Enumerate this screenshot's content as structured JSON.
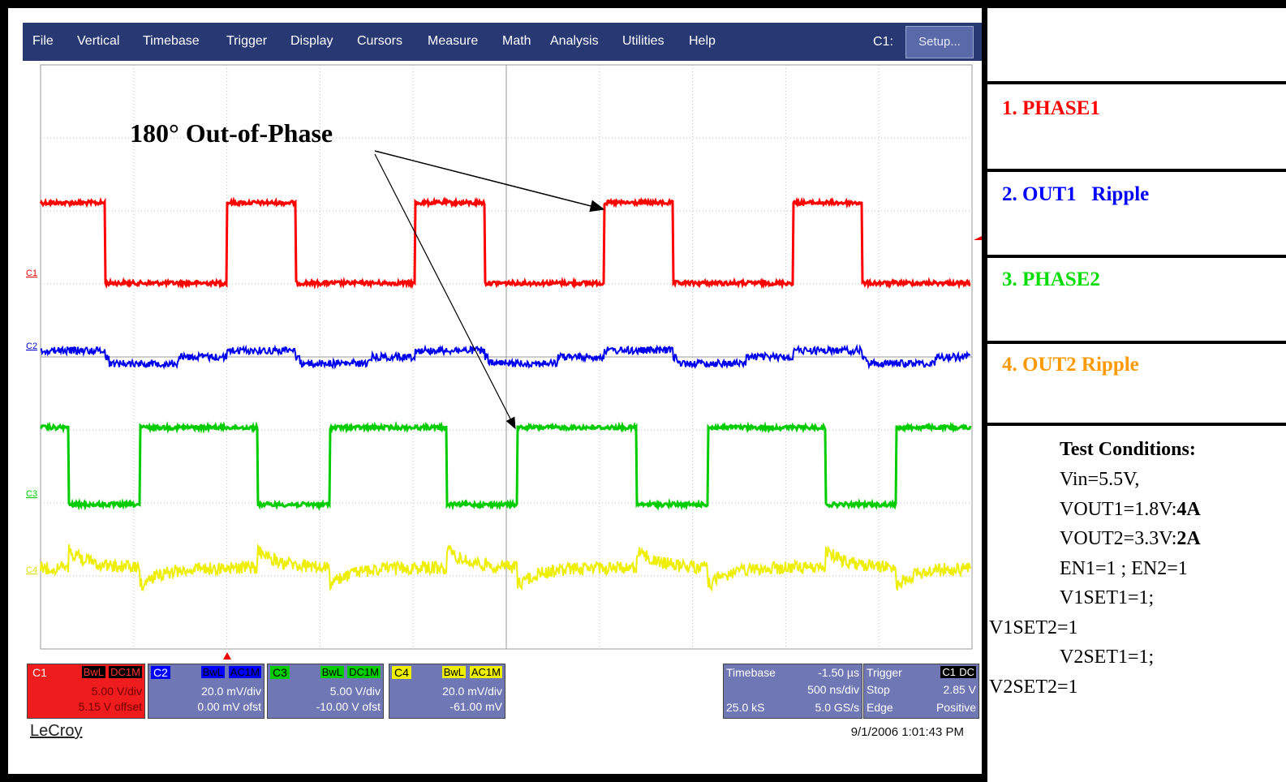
{
  "menu": {
    "items": [
      "File",
      "Vertical",
      "Timebase",
      "Trigger",
      "Display",
      "Cursors",
      "Measure",
      "Math",
      "Analysis",
      "Utilities",
      "Help"
    ],
    "channel_label": "C1:",
    "setup_button": "Setup..."
  },
  "trace_labels": [
    "C1",
    "C2",
    "C3",
    "C4"
  ],
  "annotation": "180° Out-of-Phase",
  "channels": [
    {
      "name": "C1",
      "bandwidth": "BwL",
      "coupling": "DC1M",
      "scale": "5.00 V/div",
      "offset": "5.15 V offset"
    },
    {
      "name": "C2",
      "bandwidth": "BwL",
      "coupling": "AC1M",
      "scale": "20.0 mV/div",
      "offset": "0.00 mV ofst"
    },
    {
      "name": "C3",
      "bandwidth": "BwL",
      "coupling": "DC1M",
      "scale": "5.00 V/div",
      "offset": "-10.00 V ofst"
    },
    {
      "name": "C4",
      "bandwidth": "BwL",
      "coupling": "AC1M",
      "scale": "20.0 mV/div",
      "offset": "-61.00 mV"
    }
  ],
  "timebase": {
    "title": "Timebase",
    "delay": "-1.50 µs",
    "scale": "500 ns/div",
    "samples": "25.0 kS",
    "rate": "5.0 GS/s"
  },
  "trigger": {
    "title": "Trigger",
    "source": "C1",
    "coupling": "DC",
    "mode": "Stop",
    "level": "2.85 V",
    "type": "Edge",
    "slope": "Positive"
  },
  "brand": "LeCroy",
  "timestamp": "9/1/2006 1:01:43 PM",
  "legend": [
    "1. PHASE1",
    "2. OUT1   Ripple",
    "3. PHASE2",
    "4. OUT2 Ripple"
  ],
  "test_conditions": {
    "title": "Test Conditions:",
    "lines": [
      {
        "text": "Vin=5.5V,"
      },
      {
        "text": "VOUT1=1.8V:",
        "emphasis": "4A"
      },
      {
        "text": "VOUT2=3.3V:",
        "emphasis": "2A"
      },
      {
        "text": "EN1=1 ; EN2=1"
      },
      {
        "text": "V1SET1=1;"
      },
      {
        "text": "V1SET2=1"
      },
      {
        "text": "V2SET1=1;"
      },
      {
        "text": "V2SET2=1"
      }
    ]
  }
}
